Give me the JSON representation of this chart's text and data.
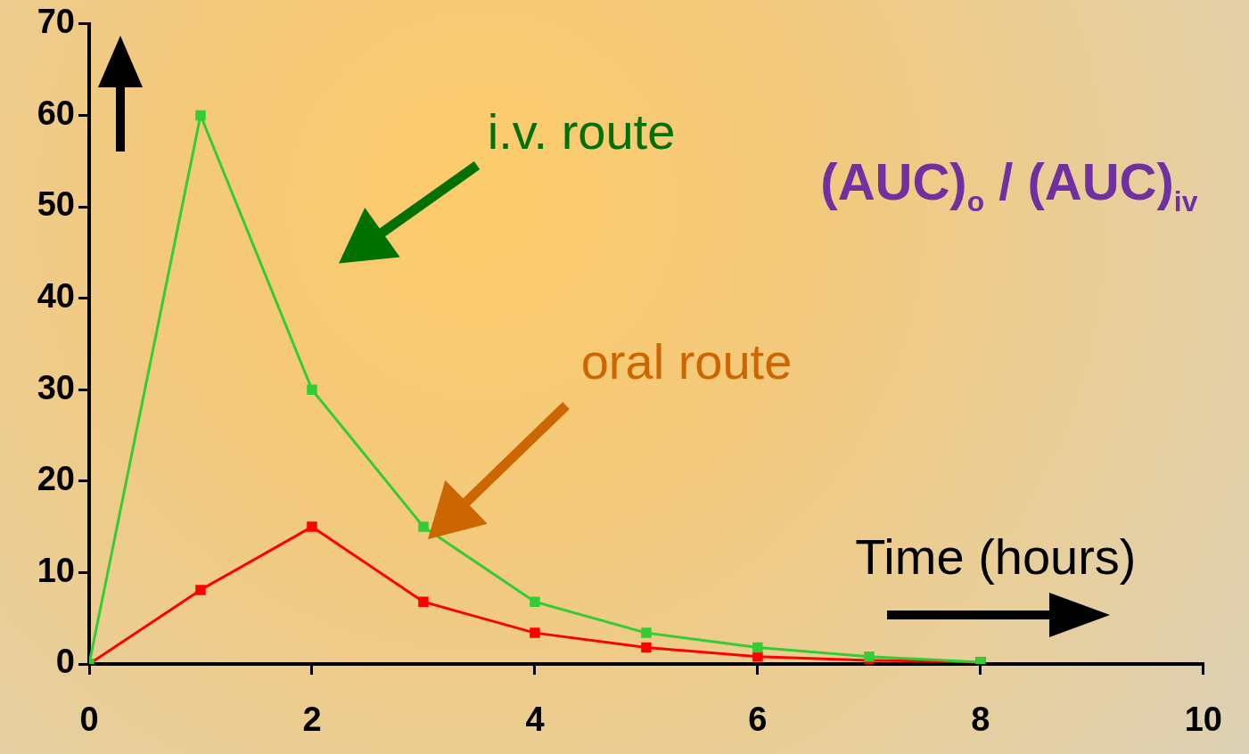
{
  "chart_data": {
    "type": "line",
    "xlabel": "Time (hours)",
    "x": [
      0,
      1,
      2,
      3,
      4,
      5,
      6,
      7,
      8
    ],
    "series": [
      {
        "color": "#33cc33",
        "values": [
          0,
          60,
          30,
          15,
          6.8,
          3.4,
          1.8,
          0.8,
          0.2
        ]
      },
      {
        "color": "#ff0000",
        "values": [
          0,
          8.1,
          15,
          6.8,
          3.4,
          1.8,
          0.8,
          0.4,
          0.2
        ]
      }
    ],
    "annotations": [
      "i.v. route",
      "oral route",
      "(AUC)$_{o}$ / (AUC)$_{iv}$"
    ],
    "xlim": [
      0,
      10
    ],
    "xticks": [
      0,
      2,
      4,
      6,
      8,
      10
    ],
    "ylim": [
      0,
      70
    ],
    "yticks": [
      0,
      10,
      20,
      30,
      40,
      50,
      60,
      70
    ],
    "grid": false,
    "legend": false,
    "marker": "square",
    "line_style": "solid"
  }
}
